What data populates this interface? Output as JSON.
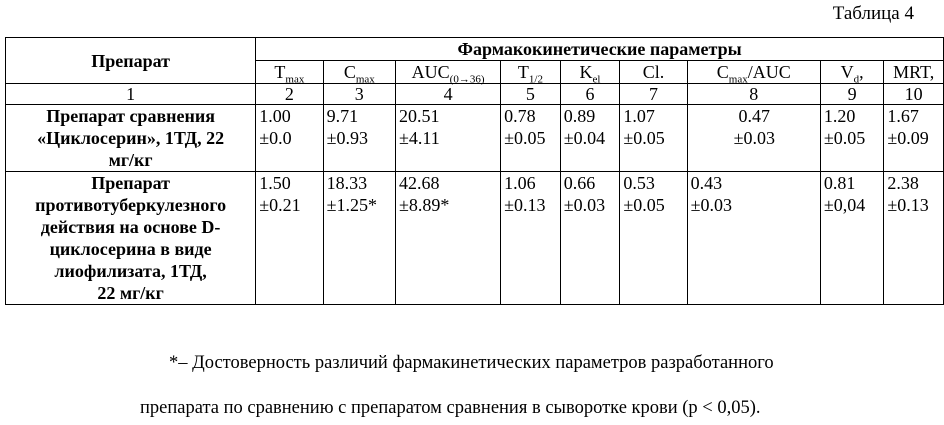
{
  "caption": "Таблица 4",
  "header": {
    "drug_col": "Препарат",
    "group": "Фармакокинетические параметры",
    "params": [
      {
        "main": "T",
        "sub": "max",
        "tail": ""
      },
      {
        "main": "C",
        "sub": "max",
        "tail": ""
      },
      {
        "main": "AUC",
        "sub": "(0→36)",
        "tail": ""
      },
      {
        "main": "T",
        "sub": "1/2",
        "tail": ""
      },
      {
        "main": "K",
        "sub": "el",
        "tail": ""
      },
      {
        "main": "Cl.",
        "sub": "",
        "tail": ""
      },
      {
        "main": "C",
        "sub": "max",
        "tail": "/AUC"
      },
      {
        "main": "V",
        "sub": "d",
        "tail": ","
      },
      {
        "main": "MRT,",
        "sub": "",
        "tail": ""
      }
    ],
    "numbers": [
      "1",
      "2",
      "3",
      "4",
      "5",
      "6",
      "7",
      "8",
      "9",
      "10"
    ]
  },
  "rows": [
    {
      "drug": [
        "Препарат сравнения",
        "«Циклосерин», 1ТД, 22",
        "мг/кг"
      ],
      "values": [
        [
          "1.00",
          "±0.0"
        ],
        [
          "9.71",
          "±0.93"
        ],
        [
          "20.51",
          "±4.11"
        ],
        [
          "0.78",
          "±0.05"
        ],
        [
          "0.89",
          "±0.04"
        ],
        [
          "1.07",
          "±0.05"
        ],
        [
          "0.47",
          "±0.03"
        ],
        [
          "1.20",
          "±0.05"
        ],
        [
          "1.67",
          "±0.09"
        ]
      ]
    },
    {
      "drug": [
        "Препарат",
        "противотуберкулезного",
        "действия на основе D-",
        "циклосерина в виде",
        "лиофилизата, 1ТД,",
        "22 мг/кг"
      ],
      "values": [
        [
          "1.50",
          "±0.21"
        ],
        [
          "18.33",
          "±1.25*"
        ],
        [
          "42.68",
          "±8.89*"
        ],
        [
          "1.06",
          "±0.13"
        ],
        [
          "0.66",
          "±0.03"
        ],
        [
          "0.53",
          "±0.05"
        ],
        [
          "0.43",
          "±0.03"
        ],
        [
          "0.81",
          "±0,04"
        ],
        [
          "2.38",
          "±0.13"
        ]
      ]
    }
  ],
  "footnote": [
    "*– Достоверность различий фармакинетических параметров разработанного",
    "препарата по сравнению с препаратом сравнения в сыворотке крови (p < 0,05)."
  ]
}
